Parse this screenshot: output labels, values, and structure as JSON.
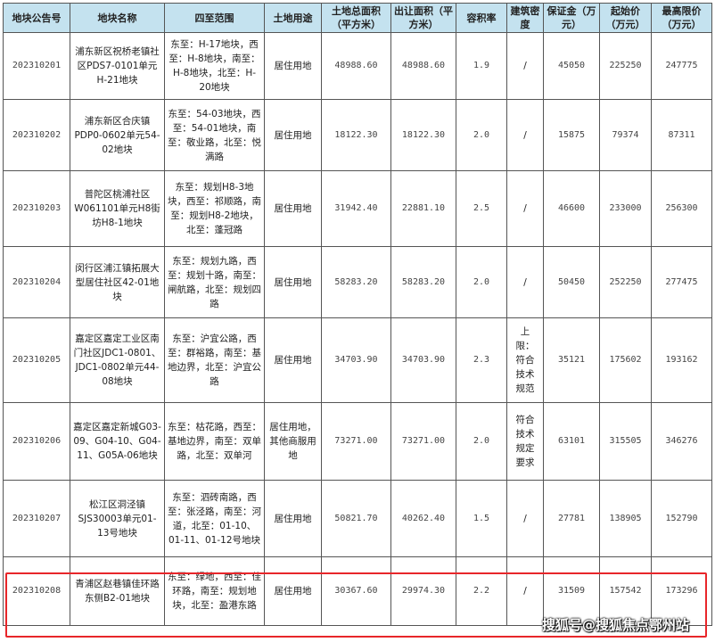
{
  "headers": [
    "地块公告号",
    "地块名称",
    "四至范围",
    "土地用途",
    "土地总面积（平方米）",
    "出让面积（平方米）",
    "容积率",
    "建筑密度",
    "保证金（万元）",
    "起始价（万元）",
    "最高限价（万元）"
  ],
  "rows": [
    [
      "202310201",
      "浦东新区祝桥老镇社区PDS7-0101单元H-21地块",
      "东至：H-17地块，西至：H-8地块，南至：H-8地块，北至：H-20地块",
      "居住用地",
      "48988.60",
      "48988.60",
      "1.9",
      "/",
      "45050",
      "225250",
      "247775"
    ],
    [
      "202310202",
      "浦东新区合庆镇PDP0-0602单元54-02地块",
      "东至：54-03地块，西至：54-01地块，南至：敬业路，北至：悦满路",
      "居住用地",
      "18122.30",
      "18122.30",
      "2.0",
      "/",
      "15875",
      "79374",
      "87311"
    ],
    [
      "202310203",
      "普陀区桃浦社区W061101单元H8街坊H8-1地块",
      "东至：规划H8-3地块，西至：祁顺路，南至：规划H8-2地块，北至：蓬冠路",
      "居住用地",
      "31942.40",
      "22881.10",
      "2.5",
      "/",
      "46600",
      "233000",
      "256300"
    ],
    [
      "202310204",
      "闵行区浦江镇拓展大型居住社区42-01地块",
      "东至：规划九路，西至：规划十路，南至：闸航路，北至：规划四路",
      "居住用地",
      "58283.20",
      "58283.20",
      "2.0",
      "/",
      "50450",
      "252250",
      "277475"
    ],
    [
      "202310205",
      "嘉定区嘉定工业区南门社区JDC1-0801、JDC1-0802单元44-08地块",
      "东至：沪宜公路，西至：群裕路，南至：基地边界，北至：沪宜公路",
      "居住用地",
      "34703.90",
      "34703.90",
      "2.3",
      "上限：符合技术规范",
      "35121",
      "175602",
      "193162"
    ],
    [
      "202310206",
      "嘉定区嘉定新城G03-09、G04-10、G04-11、G05A-06地块",
      "东至：枯花路，西至：基地边界，南至：双单路，北至：双单河",
      "居住用地，其他商服用地",
      "73271.00",
      "73271.00",
      "2.0",
      "符合技术规定要求",
      "63101",
      "315505",
      "346276"
    ],
    [
      "202310207",
      "松江区洞泾镇SJS30003单元01-13号地块",
      "东至：泗砖南路，西至：张泾路，南至：河道，北至：01-10、01-11、01-12号地块",
      "居住用地",
      "50821.70",
      "40262.40",
      "1.5",
      "/",
      "27781",
      "138905",
      "152790"
    ],
    [
      "202310208",
      "青浦区赵巷镇佳环路东侧B2-01地块",
      "东至：绿地，西至：佳环路，南至：规划地块，北至：盈港东路",
      "居住用地",
      "30367.60",
      "29974.30",
      "2.2",
      "/",
      "31509",
      "157542",
      "173296"
    ]
  ],
  "highlighted_row": "202310208",
  "highlight_color": "#e8262a",
  "header_color": "#c4e2ef",
  "watermark": "搜狐号@搜狐焦点鄂州站"
}
